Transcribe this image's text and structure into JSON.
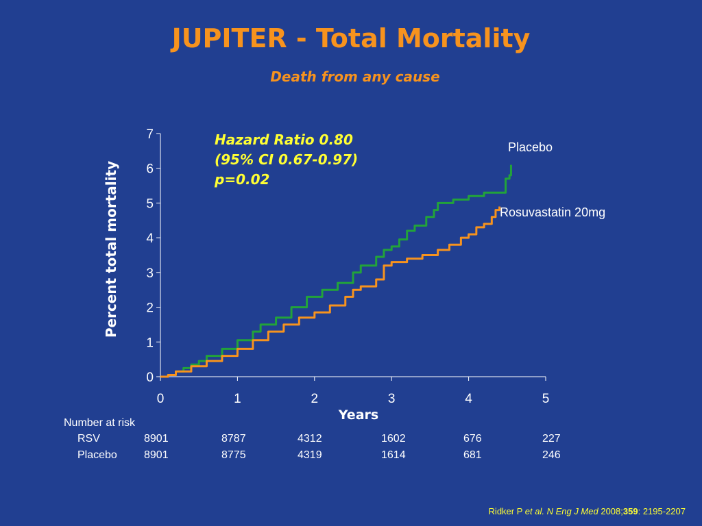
{
  "slide": {
    "title": "JUPITER - Total Mortality",
    "subtitle": "Death from any cause"
  },
  "annotation": {
    "line1": "Hazard Ratio 0.80",
    "line2": "(95% CI 0.67-0.97)",
    "line3": "p=0.02"
  },
  "risk_table": {
    "header": "Number at risk",
    "rows": [
      {
        "label": "RSV",
        "values": [
          "8901",
          "8787",
          "4312",
          "1602",
          "676",
          "227"
        ]
      },
      {
        "label": "Placebo",
        "values": [
          "8901",
          "8775",
          "4319",
          "1614",
          "681",
          "246"
        ]
      }
    ]
  },
  "citation": {
    "author": "Ridker P ",
    "etal": "et al.",
    "journal": " N Eng J Med",
    "year": " 2008;",
    "volume": "359",
    "pages": ": 2195-2207"
  },
  "colors": {
    "background": "#213f91",
    "title": "#f7931e",
    "placebo": "#22a33a",
    "rosuvastatin": "#f7931e",
    "annotation": "#ffff33"
  },
  "chart_data": {
    "type": "line",
    "title": "",
    "xlabel": "Years",
    "ylabel": "Percent total mortality",
    "xlim": [
      0,
      5
    ],
    "ylim": [
      0,
      7
    ],
    "xticks": [
      0,
      1,
      2,
      3,
      4,
      5
    ],
    "yticks": [
      0,
      1,
      2,
      3,
      4,
      5,
      6,
      7
    ],
    "grid": false,
    "step": true,
    "series": [
      {
        "name": "Placebo",
        "color": "#22a33a",
        "x": [
          0,
          0.1,
          0.2,
          0.3,
          0.4,
          0.5,
          0.6,
          0.8,
          1.0,
          1.2,
          1.3,
          1.5,
          1.7,
          1.9,
          2.1,
          2.3,
          2.5,
          2.6,
          2.8,
          2.9,
          3.0,
          3.1,
          3.2,
          3.3,
          3.45,
          3.55,
          3.6,
          3.8,
          4.0,
          4.2,
          4.4,
          4.48,
          4.53,
          4.55
        ],
        "y": [
          0,
          0.05,
          0.15,
          0.25,
          0.35,
          0.45,
          0.6,
          0.8,
          1.05,
          1.3,
          1.5,
          1.7,
          2.0,
          2.3,
          2.5,
          2.7,
          3.0,
          3.2,
          3.45,
          3.65,
          3.75,
          3.95,
          4.2,
          4.35,
          4.6,
          4.8,
          5.0,
          5.1,
          5.2,
          5.3,
          5.3,
          5.7,
          5.8,
          6.1
        ]
      },
      {
        "name": "Rosuvastatin 20mg",
        "color": "#f7931e",
        "x": [
          0,
          0.1,
          0.2,
          0.4,
          0.6,
          0.8,
          1.0,
          1.2,
          1.4,
          1.6,
          1.8,
          2.0,
          2.2,
          2.4,
          2.5,
          2.6,
          2.8,
          2.9,
          3.0,
          3.2,
          3.4,
          3.6,
          3.75,
          3.9,
          4.0,
          4.1,
          4.2,
          4.3,
          4.35,
          4.4
        ],
        "y": [
          0,
          0.05,
          0.15,
          0.3,
          0.45,
          0.6,
          0.8,
          1.05,
          1.3,
          1.5,
          1.7,
          1.85,
          2.05,
          2.3,
          2.5,
          2.6,
          2.8,
          3.2,
          3.3,
          3.4,
          3.5,
          3.65,
          3.8,
          4.0,
          4.1,
          4.3,
          4.4,
          4.6,
          4.8,
          4.9
        ]
      }
    ]
  }
}
